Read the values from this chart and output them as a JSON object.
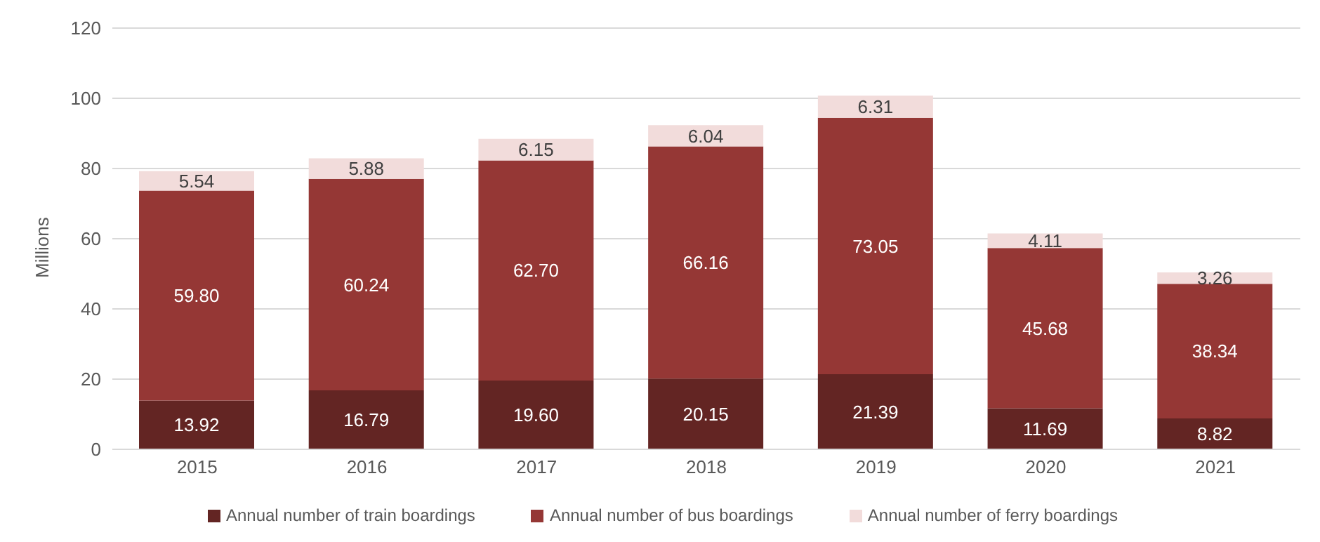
{
  "chart_data": {
    "type": "bar",
    "ylabel": "Millions",
    "categories": [
      "2015",
      "2016",
      "2017",
      "2018",
      "2019",
      "2020",
      "2021"
    ],
    "series": [
      {
        "name": "Annual number of train boardings",
        "color": "#632523",
        "values": [
          13.92,
          16.79,
          19.6,
          20.15,
          21.39,
          11.69,
          8.82
        ],
        "value_labels": [
          "13.92",
          "16.79",
          "19.60",
          "20.15",
          "21.39",
          "11.69",
          "8.82"
        ]
      },
      {
        "name": "Annual number of bus boardings",
        "color": "#953735",
        "values": [
          59.8,
          60.24,
          62.7,
          66.16,
          73.05,
          45.68,
          38.34
        ],
        "value_labels": [
          "59.80",
          "60.24",
          "62.70",
          "66.16",
          "73.05",
          "45.68",
          "38.34"
        ]
      },
      {
        "name": "Annual number of ferry boardings",
        "color": "#f2dcdb",
        "values": [
          5.54,
          5.88,
          6.15,
          6.04,
          6.31,
          4.11,
          3.26
        ],
        "value_labels": [
          "5.54",
          "5.88",
          "6.15",
          "6.04",
          "6.31",
          "4.11",
          "3.26"
        ]
      }
    ],
    "stacked": true,
    "ylim": [
      0,
      120
    ],
    "yticks": [
      0,
      20,
      40,
      60,
      80,
      100,
      120
    ],
    "grid": "y",
    "legend": "bottom"
  }
}
